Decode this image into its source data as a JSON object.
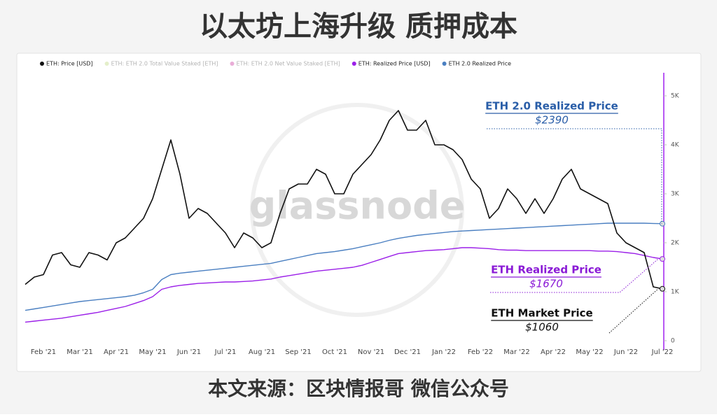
{
  "title": "以太坊上海升级 质押成本",
  "footer": "本文来源：区块情报哥 微信公众号",
  "chart_data": {
    "type": "line",
    "watermark": "glassnode",
    "categories": [
      null,
      null,
      "Feb '21",
      null,
      null,
      null,
      "Mar '21",
      null,
      null,
      null,
      "Apr '21",
      null,
      null,
      null,
      "May '21",
      null,
      null,
      null,
      "Jun '21",
      null,
      null,
      null,
      "Jul '21",
      null,
      null,
      null,
      "Aug '21",
      null,
      null,
      null,
      "Sep '21",
      null,
      null,
      null,
      "Oct '21",
      null,
      null,
      null,
      "Nov '21",
      null,
      null,
      null,
      "Dec '21",
      null,
      null,
      null,
      "Jan '22",
      null,
      null,
      null,
      "Feb '22",
      null,
      null,
      null,
      "Mar '22",
      null,
      null,
      null,
      "Apr '22",
      null,
      null,
      null,
      "May '22",
      null,
      null,
      null,
      "Jun '22",
      null,
      null,
      null,
      "Jul '22"
    ],
    "series": [
      {
        "name": "ETH: Price [USD]",
        "color": "#111111",
        "values": [
          1150,
          1300,
          1350,
          1750,
          1800,
          1550,
          1500,
          1800,
          1750,
          1650,
          2000,
          2100,
          2300,
          2500,
          2900,
          3500,
          4100,
          3400,
          2500,
          2700,
          2600,
          2400,
          2200,
          1900,
          2200,
          2100,
          1900,
          2000,
          2600,
          3100,
          3200,
          3200,
          3500,
          3400,
          3000,
          3000,
          3400,
          3600,
          3800,
          4100,
          4500,
          4700,
          4300,
          4300,
          4500,
          4000,
          4000,
          3900,
          3700,
          3300,
          3100,
          2500,
          2700,
          3100,
          2900,
          2600,
          2900,
          2600,
          2900,
          3300,
          3500,
          3100,
          3000,
          2900,
          2800,
          2200,
          2000,
          1900,
          1800,
          1100,
          1060
        ]
      },
      {
        "name": "ETH: Realized Price [USD]",
        "color": "#9b1fe8",
        "values": [
          380,
          400,
          420,
          440,
          460,
          490,
          520,
          550,
          580,
          620,
          660,
          700,
          760,
          820,
          900,
          1050,
          1100,
          1130,
          1150,
          1170,
          1180,
          1190,
          1200,
          1200,
          1210,
          1220,
          1240,
          1260,
          1300,
          1330,
          1360,
          1390,
          1420,
          1440,
          1460,
          1480,
          1500,
          1540,
          1600,
          1660,
          1720,
          1780,
          1800,
          1820,
          1840,
          1850,
          1860,
          1880,
          1900,
          1900,
          1890,
          1880,
          1860,
          1850,
          1850,
          1840,
          1840,
          1840,
          1840,
          1840,
          1840,
          1840,
          1840,
          1830,
          1830,
          1820,
          1800,
          1780,
          1740,
          1700,
          1670
        ]
      },
      {
        "name": "ETH 2.0 Realized Price",
        "color": "#4a7fc1",
        "values": [
          620,
          650,
          680,
          710,
          740,
          770,
          800,
          820,
          840,
          860,
          880,
          900,
          930,
          980,
          1050,
          1250,
          1350,
          1380,
          1400,
          1420,
          1440,
          1460,
          1480,
          1500,
          1520,
          1540,
          1560,
          1580,
          1620,
          1660,
          1700,
          1740,
          1780,
          1800,
          1820,
          1850,
          1880,
          1920,
          1960,
          2000,
          2050,
          2090,
          2120,
          2150,
          2170,
          2190,
          2210,
          2230,
          2240,
          2250,
          2260,
          2270,
          2280,
          2290,
          2300,
          2310,
          2320,
          2330,
          2340,
          2350,
          2360,
          2370,
          2380,
          2390,
          2400,
          2400,
          2400,
          2400,
          2400,
          2395,
          2390
        ]
      }
    ],
    "hidden_series": [
      {
        "name": "ETH: ETH 2.0 Total Value Staked [ETH]",
        "color": "#b5d36a"
      },
      {
        "name": "ETH: ETH 2.0 Net Value Staked [ETH]",
        "color": "#c2188f"
      }
    ],
    "legend_order": [
      0,
      "h0",
      "h1",
      1,
      2
    ],
    "ylim": [
      0,
      5000
    ],
    "yticks": [
      0,
      {
        "value": 1000,
        "label": "1K"
      },
      {
        "value": 2000,
        "label": "2K"
      },
      {
        "value": 3000,
        "label": "3K"
      },
      {
        "value": 4000,
        "label": "4K"
      },
      {
        "value": 5000,
        "label": "5K"
      }
    ],
    "annotations": [
      {
        "text": "ETH 2.0 Realized Price",
        "value_label": "$2390",
        "color": "#2a5ea8"
      },
      {
        "text": "ETH Realized Price",
        "value_label": "$1670",
        "color": "#8a1ad6"
      },
      {
        "text": "ETH Market Price",
        "value_label": "$1060",
        "color": "#111111"
      }
    ]
  }
}
